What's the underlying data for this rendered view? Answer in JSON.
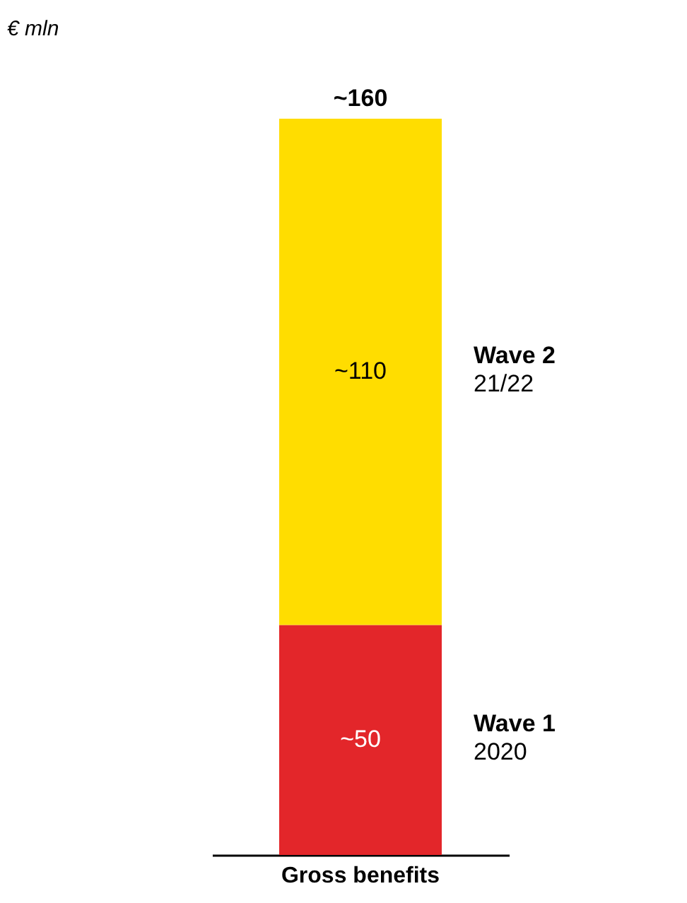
{
  "chart_data": {
    "type": "bar",
    "stacked": true,
    "title": "€ mln",
    "categories": [
      "Gross benefits"
    ],
    "series": [
      {
        "name": "Wave 1\n2020",
        "color": "#e3262a",
        "values": [
          50
        ],
        "value_labels": [
          "~50"
        ]
      },
      {
        "name": "Wave 2\n21/22",
        "color": "#ffdd00",
        "values": [
          110
        ],
        "value_labels": [
          "~110"
        ]
      }
    ],
    "totals": [
      "~160"
    ],
    "grid": false
  }
}
